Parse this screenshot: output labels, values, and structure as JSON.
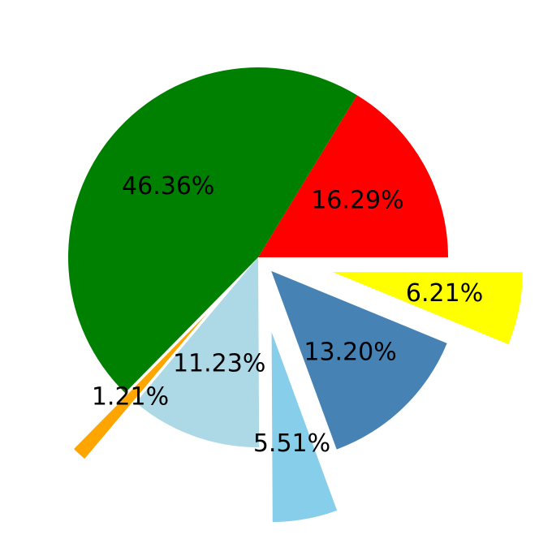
{
  "chart_data": {
    "type": "pie",
    "values": [
      16.29,
      46.36,
      1.21,
      11.23,
      5.51,
      13.2,
      6.21
    ],
    "value_labels": [
      "16.29%",
      "46.36%",
      "1.21%",
      "11.23%",
      "5.51%",
      "13.20%",
      "6.21%"
    ],
    "colors": [
      "#ff0000",
      "#008000",
      "#ffa500",
      "#add8e6",
      "#87ceeb",
      "#4682b4",
      "#ffff00"
    ],
    "explode": [
      0,
      0,
      0.4,
      0,
      0.4,
      0.1,
      0.4
    ],
    "start_angle": 0
  }
}
